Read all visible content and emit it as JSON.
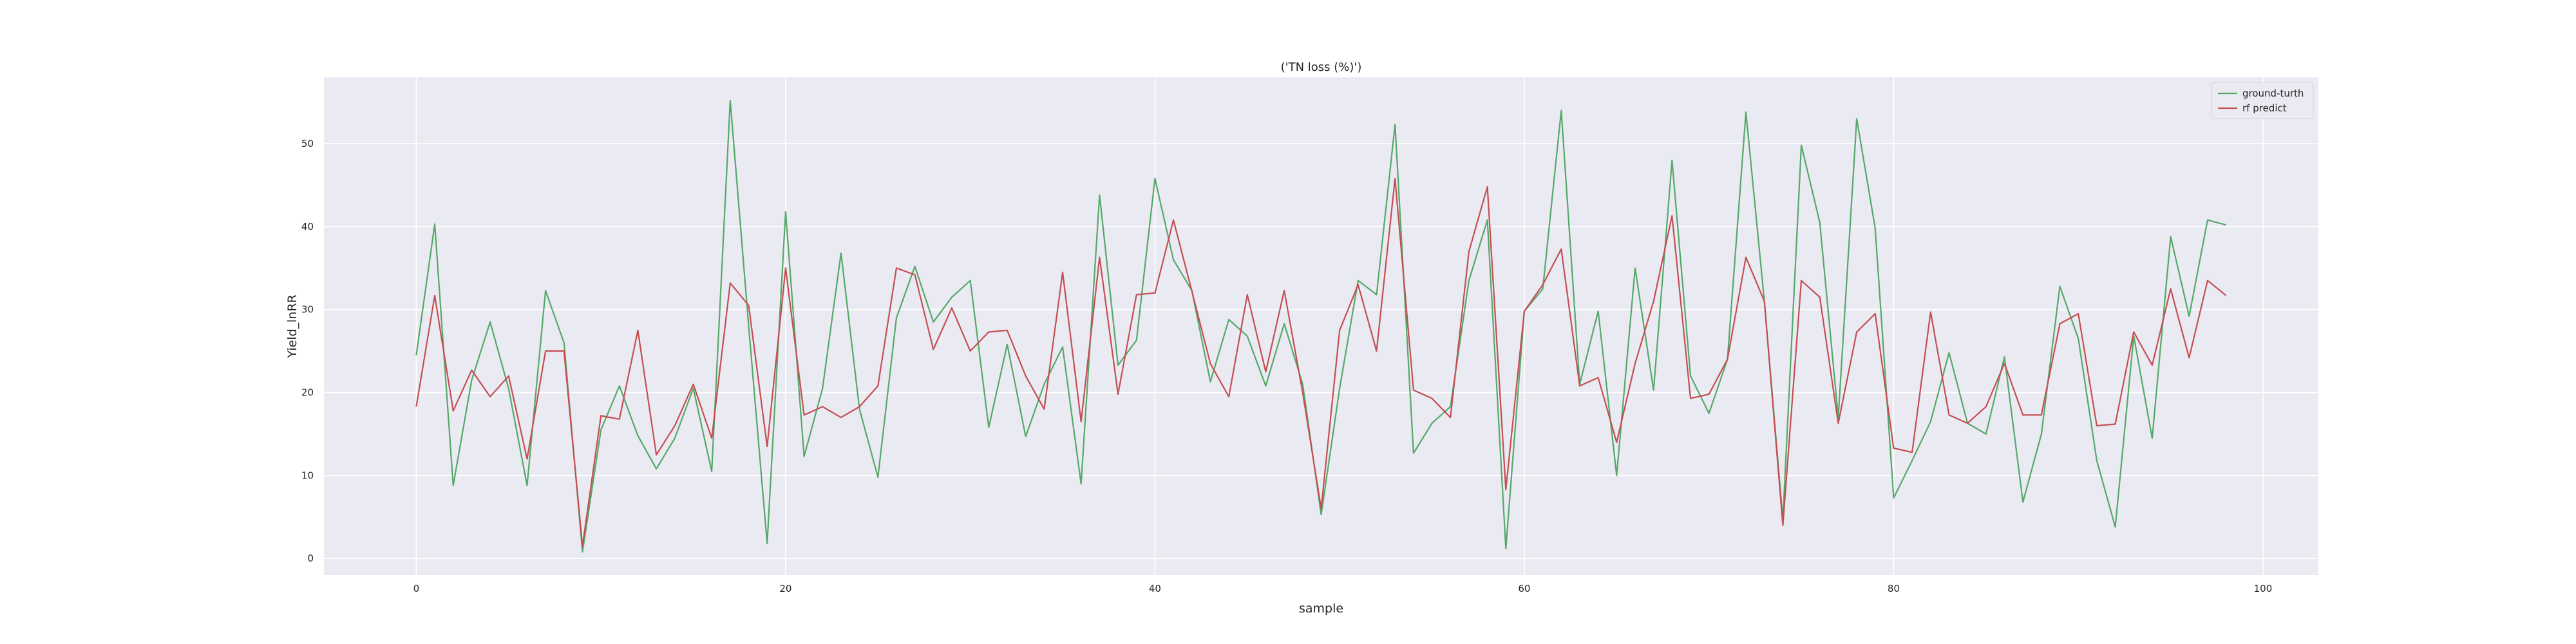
{
  "chart_data": {
    "type": "line",
    "title": "('TN loss (%)')",
    "xlabel": "sample",
    "ylabel": "Yield_lnRR",
    "xlim": [
      -5,
      103
    ],
    "ylim": [
      -2,
      58
    ],
    "xticks": [
      0,
      20,
      40,
      60,
      80,
      100
    ],
    "yticks": [
      0,
      10,
      20,
      30,
      40,
      50
    ],
    "grid": true,
    "legend_position": "top-right",
    "series": [
      {
        "name": "ground-turth",
        "color": "#55a868",
        "values": [
          24.5,
          40.3,
          8.8,
          21.5,
          28.5,
          20.5,
          8.8,
          32.3,
          26.0,
          0.8,
          15.5,
          20.8,
          14.8,
          10.8,
          14.5,
          20.5,
          10.5,
          55.2,
          28.0,
          1.8,
          41.8,
          12.3,
          20.5,
          36.8,
          18.0,
          9.8,
          29.0,
          35.2,
          28.5,
          31.5,
          33.5,
          15.8,
          25.8,
          14.7,
          21.0,
          25.5,
          9.0,
          43.8,
          23.3,
          26.3,
          45.8,
          36.0,
          32.3,
          21.3,
          28.8,
          26.8,
          20.8,
          28.3,
          21.0,
          5.3,
          20.5,
          33.5,
          31.8,
          52.3,
          12.7,
          16.3,
          18.3,
          33.5,
          40.8,
          1.2,
          29.8,
          32.5,
          54.0,
          21.0,
          29.8,
          10.0,
          35.0,
          20.3,
          48.0,
          22.0,
          17.5,
          24.0,
          53.8,
          31.0,
          4.7,
          49.8,
          40.5,
          17.0,
          53.0,
          39.8,
          7.3,
          11.8,
          16.5,
          24.8,
          16.3,
          15.0,
          24.3,
          6.8,
          15.0,
          32.8,
          26.5,
          11.8,
          3.8,
          26.8,
          14.5,
          38.8,
          29.2,
          40.8,
          40.2
        ],
        "x_start": 0
      },
      {
        "name": "rf predict",
        "color": "#c44e52",
        "values": [
          18.3,
          31.7,
          17.8,
          22.7,
          19.5,
          22.0,
          12.0,
          25.0,
          25.0,
          1.5,
          17.2,
          16.8,
          27.5,
          12.5,
          16.0,
          21.0,
          14.5,
          33.2,
          30.5,
          13.5,
          35.0,
          17.3,
          18.3,
          17.0,
          18.3,
          20.8,
          35.0,
          34.2,
          25.2,
          30.2,
          25.0,
          27.3,
          27.5,
          22.0,
          18.0,
          34.5,
          16.5,
          36.3,
          19.8,
          31.8,
          32.0,
          40.8,
          32.2,
          23.5,
          19.5,
          31.8,
          22.5,
          32.3,
          20.0,
          6.0,
          27.5,
          33.0,
          25.0,
          45.8,
          20.3,
          19.3,
          17.0,
          37.0,
          44.8,
          8.3,
          29.8,
          33.0,
          37.3,
          20.8,
          21.8,
          14.0,
          23.5,
          31.0,
          41.3,
          19.3,
          19.8,
          24.0,
          36.3,
          31.0,
          4.0,
          33.5,
          31.5,
          16.3,
          27.3,
          29.5,
          13.3,
          12.8,
          29.7,
          17.3,
          16.3,
          18.3,
          23.5,
          17.3,
          17.3,
          28.3,
          29.5,
          16.0,
          16.2,
          27.3,
          23.3,
          32.5,
          24.2,
          33.5,
          31.7
        ],
        "x_start": 0
      }
    ]
  }
}
